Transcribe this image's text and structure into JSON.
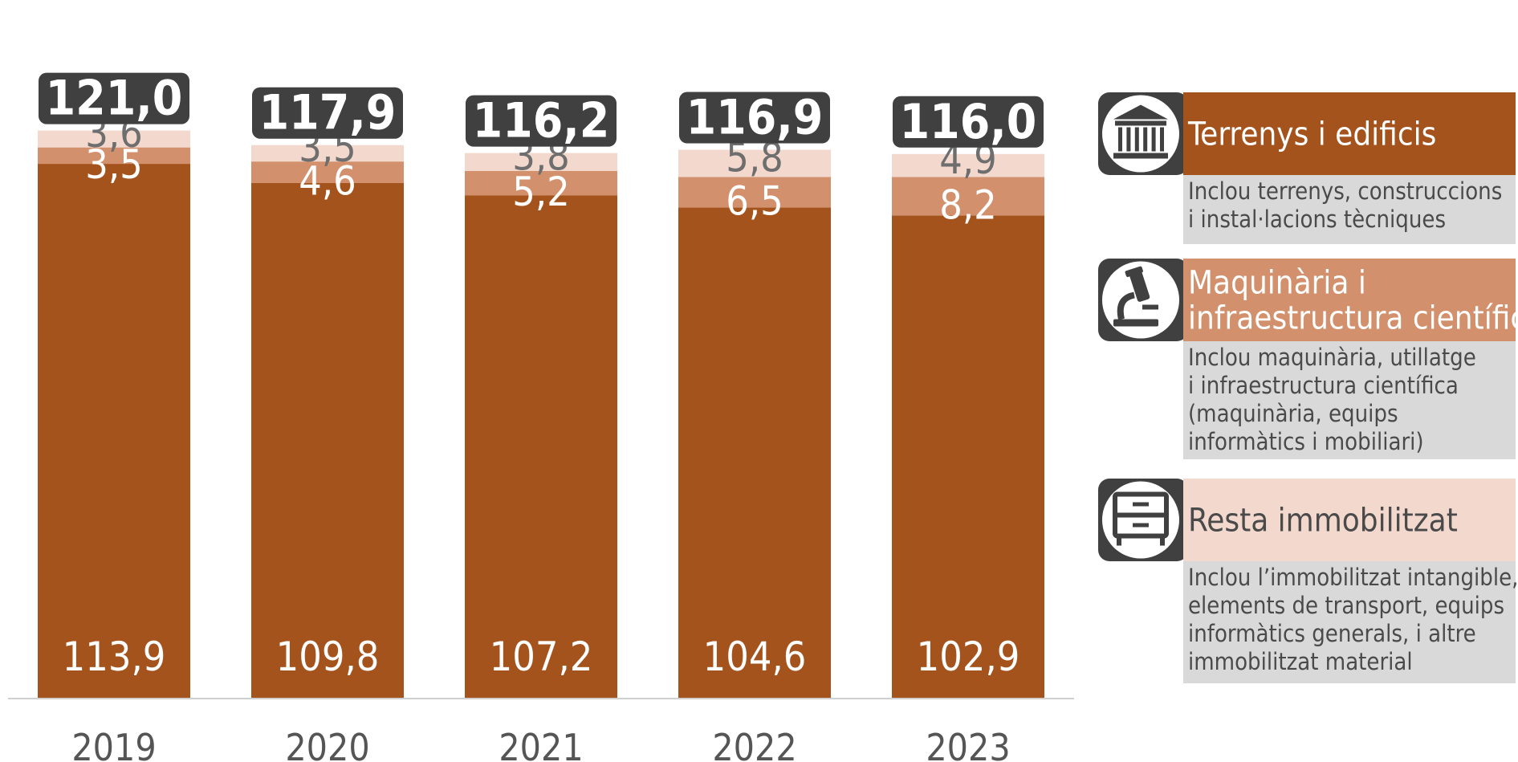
{
  "chart_data": {
    "type": "bar",
    "stacked": true,
    "categories": [
      "2019",
      "2020",
      "2021",
      "2022",
      "2023"
    ],
    "totals": [
      "121,0",
      "117,9",
      "116,2",
      "116,9",
      "116,0"
    ],
    "series": [
      {
        "key": "terrenys",
        "name": "Terrenys i edificis",
        "color": "#A5531D",
        "values": [
          113.9,
          109.8,
          107.2,
          104.6,
          102.9
        ],
        "labels": [
          "113,9",
          "109,8",
          "107,2",
          "104,6",
          "102,9"
        ]
      },
      {
        "key": "maquinaria",
        "name": "Maquinària i infraestructura científica",
        "color": "#D2916C",
        "values": [
          3.5,
          4.6,
          5.2,
          6.5,
          8.2
        ],
        "labels": [
          "3,5",
          "4,6",
          "5,2",
          "6,5",
          "8,2"
        ]
      },
      {
        "key": "resta",
        "name": "Resta immobilitzat",
        "color": "#F3D8CD",
        "values": [
          3.6,
          3.5,
          3.8,
          5.8,
          4.9
        ],
        "labels": [
          "3,6",
          "3,5",
          "3,8",
          "5,8",
          "4,9"
        ]
      }
    ],
    "colors": {
      "total_badge": "#404040",
      "legend_desc_bg": "#D9D9D9",
      "light_label": "#6E6E6E",
      "axis_line": "#D0D0D0"
    }
  },
  "legend": [
    {
      "series": "terrenys",
      "icon": "building-icon",
      "title_lines": [
        "Terrenys i edificis"
      ],
      "desc_lines": [
        "Inclou terrenys, construccions",
        "i instal·lacions tècniques"
      ]
    },
    {
      "series": "maquinaria",
      "icon": "microscope-icon",
      "title_lines": [
        "Maquinària i",
        "infraestructura científica"
      ],
      "desc_lines": [
        "Inclou maquinària, utillatge",
        "i infraestructura científica",
        "(maquinària, equips",
        "informàtics i mobiliari)"
      ]
    },
    {
      "series": "resta",
      "icon": "cabinet-icon",
      "title_lines": [
        "Resta immobilitzat"
      ],
      "desc_lines": [
        "Inclou l’immobilitzat intangible,",
        "elements de transport, equips",
        "informàtics generals, i altre",
        "immobilitzat material"
      ]
    }
  ]
}
